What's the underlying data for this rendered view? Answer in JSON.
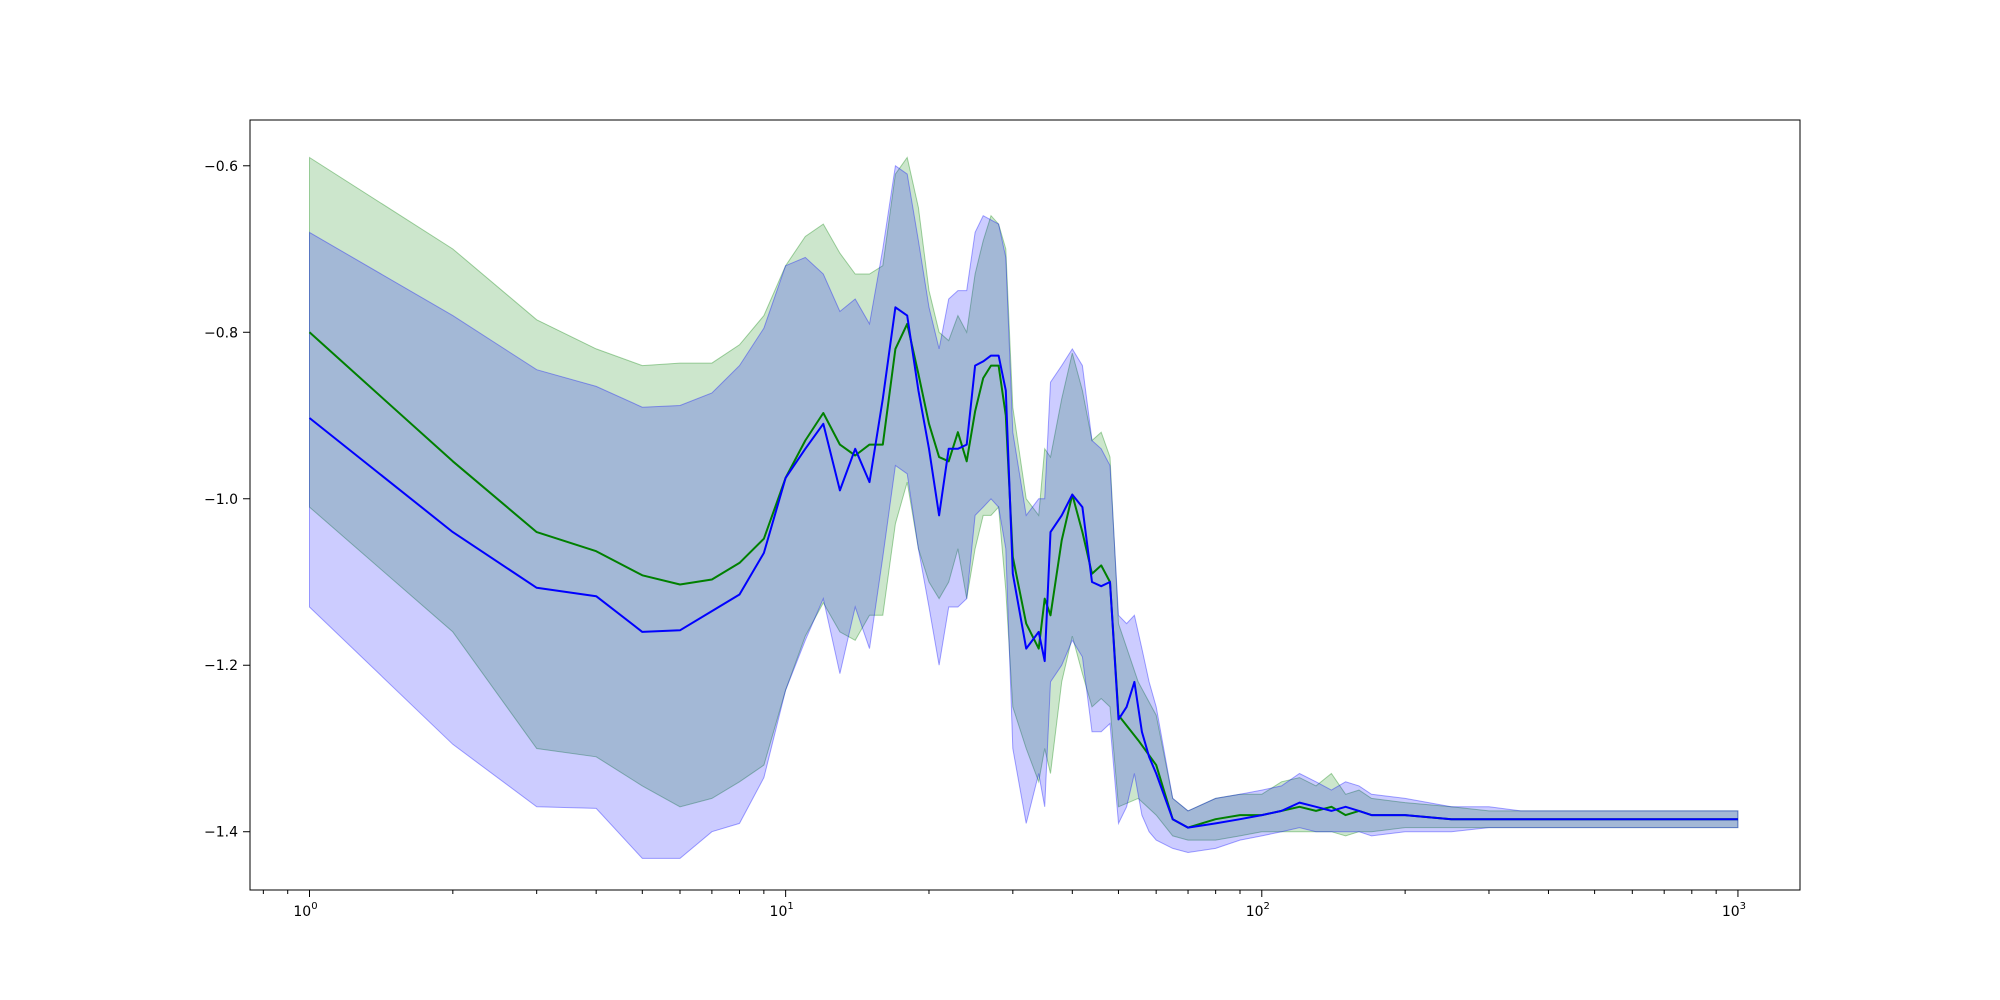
{
  "chart_data": {
    "type": "area",
    "title": "",
    "xlabel": "",
    "ylabel": "",
    "xscale": "log",
    "xlim": [
      0.75,
      1350
    ],
    "ylim": [
      -1.47,
      -0.545
    ],
    "grid": false,
    "legend": "none",
    "x_ticks": [
      {
        "value": 1,
        "base": "10",
        "exp": "0"
      },
      {
        "value": 10,
        "base": "10",
        "exp": "1"
      },
      {
        "value": 100,
        "base": "10",
        "exp": "2"
      },
      {
        "value": 1000,
        "base": "10",
        "exp": "3"
      }
    ],
    "y_ticks": [
      {
        "value": -0.6,
        "label": "−0.6"
      },
      {
        "value": -0.8,
        "label": "−0.8"
      },
      {
        "value": -1.0,
        "label": "−1.0"
      },
      {
        "value": -1.2,
        "label": "−1.2"
      },
      {
        "value": -1.4,
        "label": "−1.4"
      }
    ],
    "series": [
      {
        "color": "#008000",
        "band_color": "#008000",
        "band_opacity": 0.2,
        "x": [
          1,
          2,
          3,
          4,
          5,
          6,
          7,
          8,
          9,
          10,
          11,
          12,
          13,
          14,
          15,
          16,
          17,
          18,
          19,
          20,
          21,
          22,
          23,
          24,
          25,
          26,
          27,
          28,
          29,
          30,
          32,
          34,
          35,
          36,
          38,
          40,
          42,
          44,
          46,
          48,
          50,
          55,
          60,
          65,
          70,
          80,
          90,
          100,
          110,
          120,
          130,
          140,
          150,
          160,
          170,
          200,
          250,
          300,
          350,
          400,
          450,
          500,
          600,
          700,
          800,
          900,
          1000
        ],
        "y": [
          -0.8,
          -0.955,
          -1.04,
          -1.063,
          -1.092,
          -1.103,
          -1.097,
          -1.077,
          -1.048,
          -0.975,
          -0.93,
          -0.897,
          -0.935,
          -0.948,
          -0.935,
          -0.935,
          -0.82,
          -0.79,
          -0.85,
          -0.91,
          -0.95,
          -0.955,
          -0.92,
          -0.955,
          -0.895,
          -0.855,
          -0.84,
          -0.84,
          -0.9,
          -1.07,
          -1.15,
          -1.18,
          -1.12,
          -1.14,
          -1.05,
          -0.995,
          -1.04,
          -1.09,
          -1.08,
          -1.1,
          -1.26,
          -1.29,
          -1.32,
          -1.385,
          -1.395,
          -1.385,
          -1.38,
          -1.38,
          -1.375,
          -1.37,
          -1.375,
          -1.37,
          -1.38,
          -1.375,
          -1.38,
          -1.38,
          -1.385,
          -1.385,
          -1.385,
          -1.385,
          -1.385,
          -1.385,
          -1.385,
          -1.385,
          -1.385,
          -1.385,
          -1.385
        ],
        "y_upper": [
          -0.59,
          -0.7,
          -0.785,
          -0.82,
          -0.84,
          -0.837,
          -0.837,
          -0.815,
          -0.78,
          -0.72,
          -0.685,
          -0.67,
          -0.705,
          -0.73,
          -0.73,
          -0.72,
          -0.61,
          -0.59,
          -0.65,
          -0.75,
          -0.8,
          -0.81,
          -0.78,
          -0.8,
          -0.73,
          -0.69,
          -0.66,
          -0.67,
          -0.7,
          -0.89,
          -1.0,
          -1.02,
          -0.94,
          -0.95,
          -0.88,
          -0.825,
          -0.87,
          -0.93,
          -0.92,
          -0.95,
          -1.15,
          -1.22,
          -1.26,
          -1.36,
          -1.375,
          -1.36,
          -1.355,
          -1.355,
          -1.34,
          -1.335,
          -1.345,
          -1.33,
          -1.355,
          -1.35,
          -1.36,
          -1.365,
          -1.37,
          -1.375,
          -1.375,
          -1.375,
          -1.375,
          -1.375,
          -1.375,
          -1.375,
          -1.375,
          -1.375,
          -1.375
        ],
        "y_lower": [
          -1.01,
          -1.16,
          -1.3,
          -1.31,
          -1.345,
          -1.37,
          -1.36,
          -1.34,
          -1.32,
          -1.23,
          -1.165,
          -1.125,
          -1.16,
          -1.17,
          -1.14,
          -1.14,
          -1.03,
          -0.98,
          -1.06,
          -1.1,
          -1.12,
          -1.1,
          -1.06,
          -1.12,
          -1.06,
          -1.02,
          -1.02,
          -1.01,
          -1.11,
          -1.25,
          -1.3,
          -1.34,
          -1.3,
          -1.33,
          -1.22,
          -1.165,
          -1.21,
          -1.25,
          -1.24,
          -1.25,
          -1.37,
          -1.36,
          -1.38,
          -1.405,
          -1.41,
          -1.41,
          -1.405,
          -1.4,
          -1.4,
          -1.4,
          -1.4,
          -1.4,
          -1.405,
          -1.4,
          -1.4,
          -1.395,
          -1.395,
          -1.395,
          -1.395,
          -1.395,
          -1.395,
          -1.395,
          -1.395,
          -1.395,
          -1.395,
          -1.395,
          -1.395
        ]
      },
      {
        "color": "#0000ff",
        "band_color": "#0000ff",
        "band_opacity": 0.2,
        "x": [
          1,
          2,
          3,
          4,
          5,
          6,
          7,
          8,
          9,
          10,
          11,
          12,
          13,
          14,
          15,
          16,
          17,
          18,
          19,
          20,
          21,
          22,
          23,
          24,
          25,
          26,
          27,
          28,
          29,
          30,
          32,
          34,
          35,
          36,
          38,
          40,
          42,
          44,
          46,
          48,
          50,
          52,
          54,
          56,
          58,
          60,
          65,
          70,
          80,
          90,
          100,
          110,
          120,
          130,
          140,
          150,
          160,
          170,
          200,
          250,
          300,
          350,
          400,
          450,
          500,
          600,
          700,
          800,
          900,
          1000
        ],
        "y": [
          -0.903,
          -1.04,
          -1.107,
          -1.117,
          -1.16,
          -1.158,
          -1.135,
          -1.115,
          -1.065,
          -0.975,
          -0.94,
          -0.91,
          -0.99,
          -0.94,
          -0.98,
          -0.88,
          -0.77,
          -0.78,
          -0.87,
          -0.94,
          -1.02,
          -0.94,
          -0.94,
          -0.935,
          -0.84,
          -0.835,
          -0.828,
          -0.828,
          -0.87,
          -1.09,
          -1.18,
          -1.16,
          -1.195,
          -1.04,
          -1.02,
          -0.995,
          -1.01,
          -1.1,
          -1.105,
          -1.1,
          -1.265,
          -1.25,
          -1.22,
          -1.28,
          -1.31,
          -1.33,
          -1.385,
          -1.395,
          -1.39,
          -1.385,
          -1.38,
          -1.375,
          -1.365,
          -1.37,
          -1.375,
          -1.37,
          -1.375,
          -1.38,
          -1.38,
          -1.385,
          -1.385,
          -1.385,
          -1.385,
          -1.385,
          -1.385,
          -1.385,
          -1.385,
          -1.385,
          -1.385,
          -1.385
        ],
        "y_upper": [
          -0.68,
          -0.78,
          -0.845,
          -0.865,
          -0.89,
          -0.888,
          -0.873,
          -0.84,
          -0.795,
          -0.72,
          -0.71,
          -0.73,
          -0.775,
          -0.76,
          -0.79,
          -0.7,
          -0.6,
          -0.61,
          -0.69,
          -0.77,
          -0.82,
          -0.76,
          -0.75,
          -0.75,
          -0.68,
          -0.66,
          -0.665,
          -0.67,
          -0.71,
          -0.92,
          -1.02,
          -1.0,
          -1.0,
          -0.86,
          -0.84,
          -0.82,
          -0.84,
          -0.93,
          -0.94,
          -0.96,
          -1.14,
          -1.15,
          -1.14,
          -1.18,
          -1.22,
          -1.25,
          -1.36,
          -1.375,
          -1.36,
          -1.355,
          -1.35,
          -1.345,
          -1.33,
          -1.34,
          -1.35,
          -1.34,
          -1.345,
          -1.355,
          -1.36,
          -1.37,
          -1.37,
          -1.375,
          -1.375,
          -1.375,
          -1.375,
          -1.375,
          -1.375,
          -1.375,
          -1.375,
          -1.375
        ],
        "y_lower": [
          -1.13,
          -1.295,
          -1.37,
          -1.372,
          -1.432,
          -1.432,
          -1.4,
          -1.39,
          -1.335,
          -1.23,
          -1.17,
          -1.12,
          -1.21,
          -1.13,
          -1.18,
          -1.07,
          -0.96,
          -0.97,
          -1.06,
          -1.13,
          -1.2,
          -1.13,
          -1.13,
          -1.12,
          -1.02,
          -1.01,
          -1.0,
          -1.01,
          -1.06,
          -1.3,
          -1.39,
          -1.33,
          -1.37,
          -1.22,
          -1.2,
          -1.17,
          -1.19,
          -1.28,
          -1.28,
          -1.27,
          -1.39,
          -1.37,
          -1.33,
          -1.38,
          -1.4,
          -1.41,
          -1.42,
          -1.425,
          -1.42,
          -1.41,
          -1.405,
          -1.4,
          -1.395,
          -1.4,
          -1.4,
          -1.4,
          -1.4,
          -1.405,
          -1.4,
          -1.4,
          -1.395,
          -1.395,
          -1.395,
          -1.395,
          -1.395,
          -1.395,
          -1.395,
          -1.395,
          -1.395,
          -1.395
        ]
      }
    ]
  }
}
